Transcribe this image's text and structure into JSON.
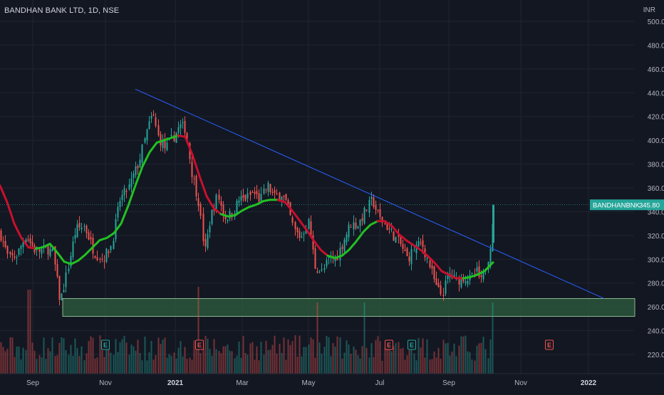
{
  "header": {
    "symbol_title": "BANDHAN BANK LTD, 1D, NSE",
    "currency": "INR"
  },
  "price_label": {
    "ticker": "BANDHANBNK",
    "value": "345.80"
  },
  "colors": {
    "background": "#131722",
    "up": "#26a69a",
    "down": "#ef5350",
    "ma_up": "#22c122",
    "ma_down": "#c8102e",
    "trendline": "#2962ff",
    "zone_fill": "#2e5e3e",
    "zone_stroke": "#a5d6a7",
    "axis_text": "#b2b5be",
    "grid": "#1f2430"
  },
  "chart_data": {
    "type": "candlestick",
    "title": "BANDHAN BANK LTD, 1D, NSE",
    "y_axis": {
      "label": "INR",
      "ticks": [
        500,
        480,
        460,
        440,
        420,
        400,
        380,
        360,
        340,
        320,
        300,
        280,
        260,
        240,
        220
      ],
      "tick_labels": [
        "500.00",
        "480.00",
        "460.00",
        "440.00",
        "420.00",
        "400.00",
        "380.00",
        "360.00",
        "340.00",
        "320.00",
        "300.00",
        "280.00",
        "260.00",
        "240.00",
        "220.00"
      ],
      "range": [
        207,
        521
      ]
    },
    "x_axis": {
      "tick_labels": [
        "Sep",
        "Nov",
        "2021",
        "Mar",
        "May",
        "Jul",
        "Sep",
        "Nov",
        "2022"
      ]
    },
    "last_price": 345.8,
    "close_path_points": [
      [
        0,
        322
      ],
      [
        12,
        300
      ],
      [
        24,
        304
      ],
      [
        36,
        320
      ],
      [
        48,
        308
      ],
      [
        56,
        307
      ],
      [
        66,
        309
      ],
      [
        74,
        305
      ],
      [
        84,
        264
      ],
      [
        94,
        290
      ],
      [
        106,
        325
      ],
      [
        118,
        328
      ],
      [
        132,
        306
      ],
      [
        144,
        300
      ],
      [
        156,
        312
      ],
      [
        168,
        350
      ],
      [
        180,
        360
      ],
      [
        195,
        382
      ],
      [
        206,
        408
      ],
      [
        214,
        422
      ],
      [
        222,
        402
      ],
      [
        232,
        393
      ],
      [
        242,
        402
      ],
      [
        252,
        412
      ],
      [
        260,
        410
      ],
      [
        268,
        375
      ],
      [
        278,
        350
      ],
      [
        287,
        305
      ],
      [
        295,
        335
      ],
      [
        305,
        354
      ],
      [
        315,
        335
      ],
      [
        325,
        338
      ],
      [
        335,
        350
      ],
      [
        345,
        351
      ],
      [
        355,
        356
      ],
      [
        365,
        350
      ],
      [
        375,
        362
      ],
      [
        385,
        352
      ],
      [
        395,
        355
      ],
      [
        403,
        345
      ],
      [
        412,
        325
      ],
      [
        422,
        318
      ],
      [
        432,
        333
      ],
      [
        442,
        294
      ],
      [
        452,
        289
      ],
      [
        462,
        301
      ],
      [
        472,
        301
      ],
      [
        482,
        316
      ],
      [
        492,
        330
      ],
      [
        502,
        329
      ],
      [
        512,
        340
      ],
      [
        522,
        350
      ],
      [
        532,
        335
      ],
      [
        542,
        328
      ],
      [
        552,
        320
      ],
      [
        562,
        312
      ],
      [
        572,
        300
      ],
      [
        582,
        310
      ],
      [
        592,
        313
      ],
      [
        602,
        296
      ],
      [
        612,
        276
      ],
      [
        620,
        270
      ],
      [
        630,
        288
      ],
      [
        640,
        282
      ],
      [
        650,
        285
      ],
      [
        660,
        283
      ],
      [
        668,
        290
      ],
      [
        676,
        280
      ],
      [
        684,
        300
      ],
      [
        688,
        314
      ],
      [
        693,
        345.8
      ]
    ],
    "moving_average_points": [
      [
        0,
        362
      ],
      [
        10,
        348
      ],
      [
        20,
        330
      ],
      [
        30,
        318
      ],
      [
        40,
        310
      ],
      [
        50,
        309
      ],
      [
        60,
        310
      ],
      [
        70,
        313
      ],
      [
        80,
        306
      ],
      [
        90,
        298
      ],
      [
        100,
        296
      ],
      [
        110,
        299
      ],
      [
        120,
        304
      ],
      [
        130,
        310
      ],
      [
        140,
        316
      ],
      [
        150,
        318
      ],
      [
        160,
        322
      ],
      [
        170,
        330
      ],
      [
        180,
        345
      ],
      [
        190,
        362
      ],
      [
        200,
        378
      ],
      [
        210,
        390
      ],
      [
        220,
        398
      ],
      [
        230,
        400
      ],
      [
        240,
        402
      ],
      [
        250,
        404
      ],
      [
        260,
        403
      ],
      [
        270,
        388
      ],
      [
        280,
        370
      ],
      [
        290,
        353
      ],
      [
        300,
        343
      ],
      [
        310,
        338
      ],
      [
        320,
        336
      ],
      [
        330,
        337
      ],
      [
        340,
        341
      ],
      [
        350,
        344
      ],
      [
        360,
        346
      ],
      [
        370,
        349
      ],
      [
        380,
        350
      ],
      [
        390,
        350
      ],
      [
        400,
        348
      ],
      [
        410,
        341
      ],
      [
        420,
        333
      ],
      [
        430,
        325
      ],
      [
        440,
        316
      ],
      [
        450,
        308
      ],
      [
        460,
        303
      ],
      [
        470,
        301
      ],
      [
        480,
        303
      ],
      [
        490,
        308
      ],
      [
        500,
        315
      ],
      [
        510,
        323
      ],
      [
        520,
        329
      ],
      [
        530,
        332
      ],
      [
        540,
        332
      ],
      [
        550,
        328
      ],
      [
        560,
        321
      ],
      [
        570,
        316
      ],
      [
        580,
        312
      ],
      [
        590,
        308
      ],
      [
        600,
        303
      ],
      [
        610,
        297
      ],
      [
        620,
        290
      ],
      [
        630,
        287
      ],
      [
        640,
        284
      ],
      [
        650,
        284
      ],
      [
        660,
        285
      ],
      [
        670,
        287
      ],
      [
        680,
        290
      ],
      [
        693,
        298
      ]
    ],
    "ma_color_change_points": [
      {
        "from": 0,
        "to": 50,
        "state": "down"
      },
      {
        "from": 50,
        "to": 250,
        "state": "up"
      },
      {
        "from": 250,
        "to": 310,
        "state": "down"
      },
      {
        "from": 310,
        "to": 390,
        "state": "up"
      },
      {
        "from": 390,
        "to": 460,
        "state": "down"
      },
      {
        "from": 460,
        "to": 530,
        "state": "up"
      },
      {
        "from": 530,
        "to": 650,
        "state": "down"
      },
      {
        "from": 650,
        "to": 693,
        "state": "up"
      }
    ],
    "trendline": {
      "start": [
        190,
        443
      ],
      "end": [
        848,
        267
      ]
    },
    "support_zone": {
      "low": 252,
      "high": 267,
      "x_start": 88,
      "x_end": 891
    },
    "volume_spikes": [
      {
        "x": 40,
        "volume": 78
      },
      {
        "x": 278,
        "volume": 82
      },
      {
        "x": 444,
        "volume": 60
      },
      {
        "x": 512,
        "volume": 60
      },
      {
        "x": 690,
        "volume": 60
      }
    ],
    "event_markers": [
      {
        "label": "E",
        "x": 148,
        "kind": "up"
      },
      {
        "label": "E",
        "x": 280,
        "kind": "down"
      },
      {
        "label": "E",
        "x": 546,
        "kind": "down"
      },
      {
        "label": "E",
        "x": 578,
        "kind": "up"
      },
      {
        "label": "E",
        "x": 771,
        "kind": "down"
      }
    ]
  }
}
